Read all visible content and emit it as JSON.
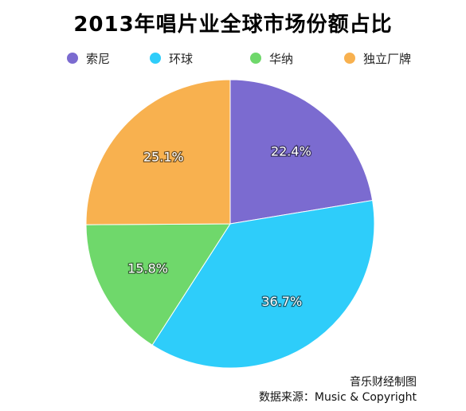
{
  "chart_data": {
    "type": "pie",
    "title": "2013年唱片业全球市场份额占比",
    "categories": [
      "索尼",
      "环球",
      "华纳",
      "独立厂牌"
    ],
    "values": [
      22.4,
      36.7,
      15.8,
      25.1
    ],
    "value_labels": [
      "22.4%",
      "36.7%",
      "15.8%",
      "25.1%"
    ],
    "colors": [
      "#7b6bd0",
      "#2ecdfa",
      "#6fd86b",
      "#f8b14f"
    ],
    "start_angle": "12 o'clock",
    "direction": "clockwise",
    "legend_position": "top",
    "grid": false
  },
  "source": {
    "line1": "音乐财经制图",
    "line2": "数据来源：Music & Copyright"
  }
}
